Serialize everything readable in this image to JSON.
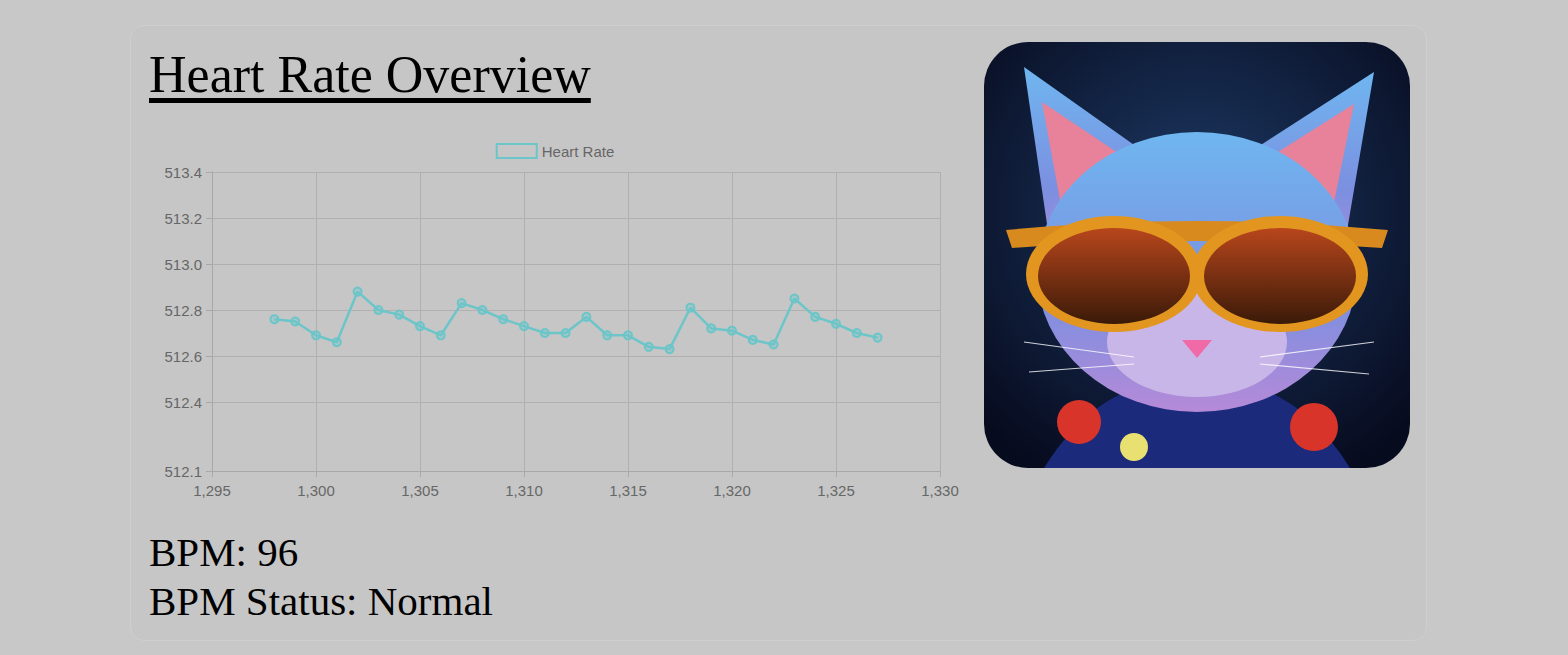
{
  "header": {
    "title": "Heart Rate Overview"
  },
  "chart_data": {
    "type": "line",
    "x": [
      1298,
      1299,
      1300,
      1301,
      1302,
      1303,
      1304,
      1305,
      1306,
      1307,
      1308,
      1309,
      1310,
      1311,
      1312,
      1313,
      1314,
      1315,
      1316,
      1317,
      1318,
      1319,
      1320,
      1321,
      1322,
      1323,
      1324,
      1325,
      1326,
      1327
    ],
    "series": [
      {
        "name": "Heart Rate",
        "color": "#6cc5c8",
        "marker": "circle",
        "values": [
          512.76,
          512.75,
          512.69,
          512.66,
          512.88,
          512.8,
          512.78,
          512.73,
          512.69,
          512.83,
          512.8,
          512.76,
          512.73,
          512.7,
          512.7,
          512.77,
          512.69,
          512.69,
          512.64,
          512.63,
          512.81,
          512.72,
          512.71,
          512.67,
          512.65,
          512.85,
          512.77,
          512.74,
          512.7,
          512.68
        ]
      }
    ],
    "xlim": [
      1295,
      1330
    ],
    "xticks": [
      {
        "value": 1295,
        "label": "1,295"
      },
      {
        "value": 1300,
        "label": "1,300"
      },
      {
        "value": 1305,
        "label": "1,305"
      },
      {
        "value": 1310,
        "label": "1,310"
      },
      {
        "value": 1315,
        "label": "1,315"
      },
      {
        "value": 1320,
        "label": "1,320"
      },
      {
        "value": 1325,
        "label": "1,325"
      },
      {
        "value": 1330,
        "label": "1,330"
      }
    ],
    "ylim": [
      512.1,
      513.4
    ],
    "yticks": [
      512.1,
      512.4,
      512.6,
      512.8,
      {
        "value": 513,
        "label": "513.0"
      },
      513.2,
      513.4
    ],
    "grid": true,
    "legend": "top"
  },
  "stats": {
    "lines": [
      "BPM: 96",
      "BPM Status: Normal"
    ]
  }
}
